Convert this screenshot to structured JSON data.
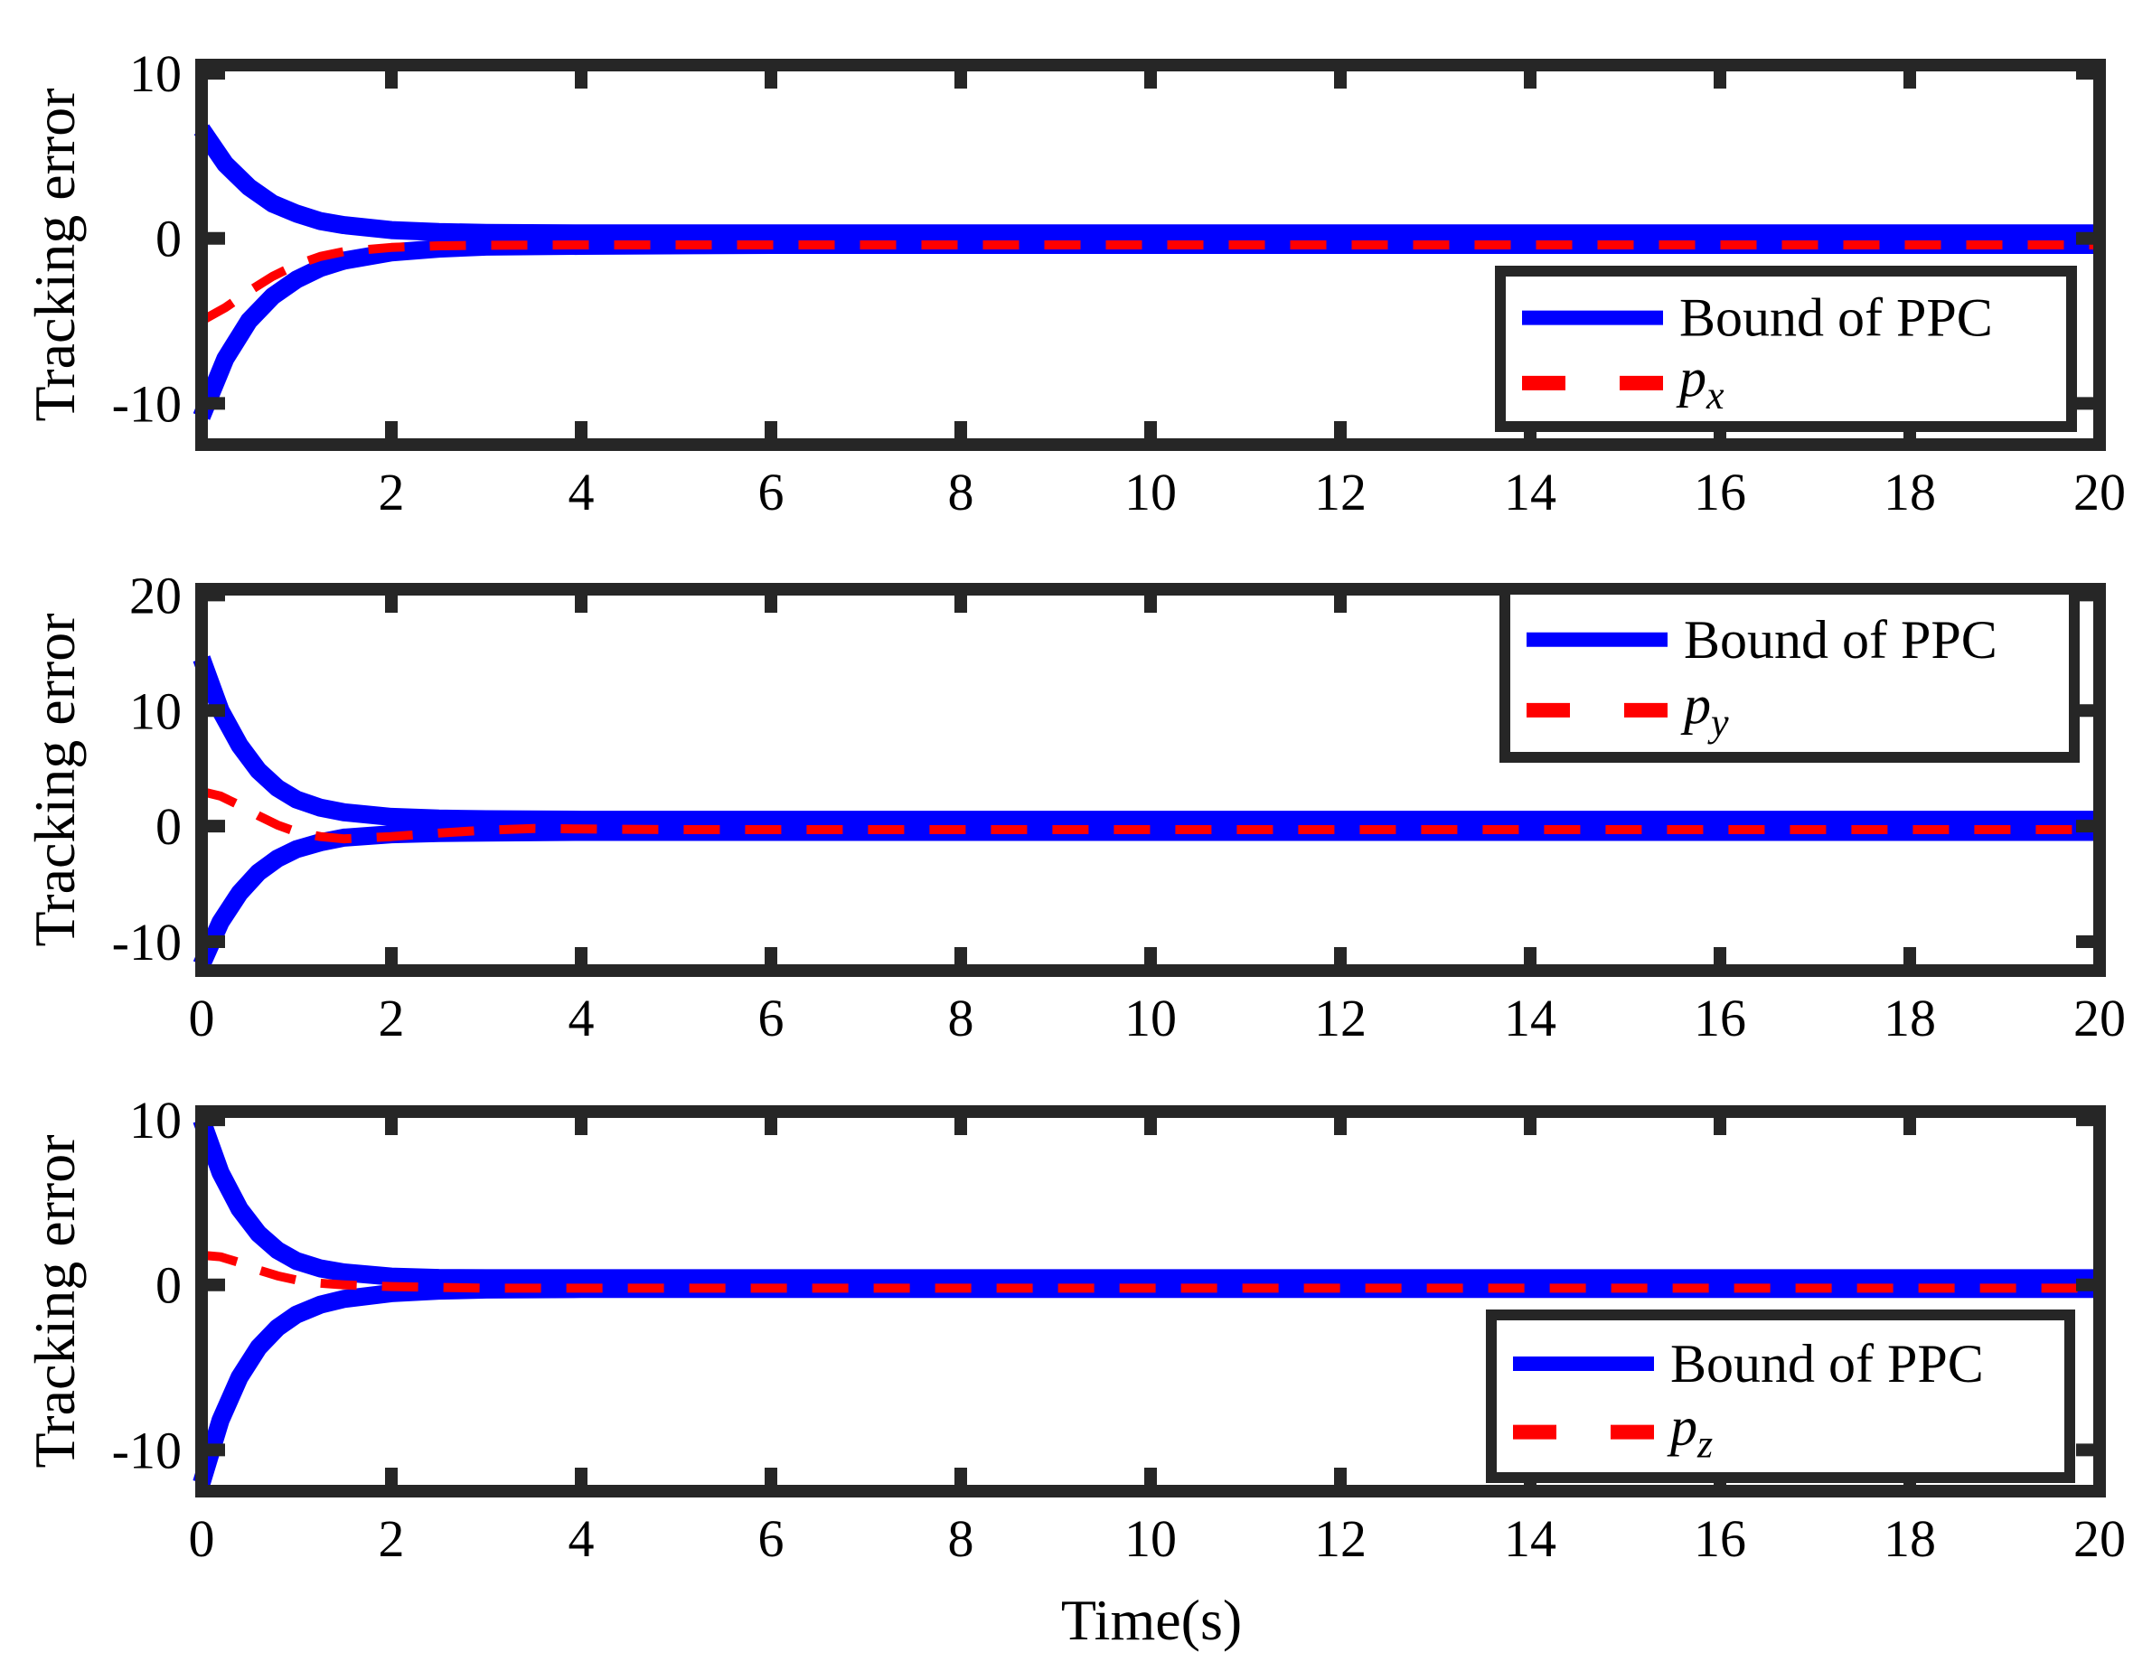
{
  "figure": {
    "xlabel": "Time(s)"
  },
  "colors": {
    "bound": "#0000ff",
    "signal": "#ff0000",
    "frame": "#262626",
    "text": "#000000"
  },
  "chart_data": [
    {
      "type": "line",
      "ylabel": "Tracking error",
      "xlim": [
        0,
        20
      ],
      "ylim": [
        -12.5,
        10.5
      ],
      "x_ticks": [
        2,
        4,
        6,
        8,
        10,
        12,
        14,
        16,
        18,
        20
      ],
      "x_tick_labels": [
        "2",
        "4",
        "6",
        "8",
        "10",
        "12",
        "14",
        "16",
        "18",
        "20"
      ],
      "y_ticks": [
        -10,
        0,
        10
      ],
      "y_tick_labels": [
        "-10",
        "0",
        "10"
      ],
      "legend": {
        "position": "bottom-right",
        "entries": [
          "Bound of PPC",
          "p",
          "x"
        ]
      },
      "legend_bound_label": "Bound of PPC",
      "legend_signal_label": "p",
      "legend_signal_sub": "x",
      "series": [
        {
          "role": "bound-upper",
          "x": [
            0,
            0.25,
            0.5,
            0.75,
            1,
            1.25,
            1.5,
            2,
            2.5,
            3,
            4,
            6,
            10,
            20
          ],
          "y": [
            6.6,
            4.5,
            3.1,
            2.1,
            1.5,
            1.05,
            0.8,
            0.5,
            0.38,
            0.33,
            0.3,
            0.3,
            0.3,
            0.3
          ]
        },
        {
          "role": "bound-lower",
          "x": [
            0,
            0.25,
            0.5,
            0.75,
            1,
            1.25,
            1.5,
            2,
            2.5,
            3,
            4,
            6,
            10,
            20
          ],
          "y": [
            -10.8,
            -7.3,
            -5.0,
            -3.5,
            -2.5,
            -1.8,
            -1.35,
            -0.85,
            -0.62,
            -0.5,
            -0.45,
            -0.4,
            -0.4,
            -0.4
          ]
        },
        {
          "role": "signal",
          "name": "p_x",
          "x": [
            0,
            0.25,
            0.5,
            0.75,
            1,
            1.25,
            1.5,
            2,
            2.5,
            3,
            4,
            6,
            10,
            20
          ],
          "y": [
            -5.0,
            -4.2,
            -3.2,
            -2.3,
            -1.6,
            -1.1,
            -0.8,
            -0.55,
            -0.45,
            -0.42,
            -0.4,
            -0.4,
            -0.4,
            -0.4
          ]
        }
      ]
    },
    {
      "type": "line",
      "ylabel": "Tracking error",
      "xlim": [
        0,
        20
      ],
      "ylim": [
        -12.5,
        20.5
      ],
      "x_ticks": [
        0,
        2,
        4,
        6,
        8,
        10,
        12,
        14,
        16,
        18,
        20
      ],
      "x_tick_labels": [
        "0",
        "2",
        "4",
        "6",
        "8",
        "10",
        "12",
        "14",
        "16",
        "18",
        "20"
      ],
      "y_ticks": [
        -10,
        0,
        10,
        20
      ],
      "y_tick_labels": [
        "-10",
        "0",
        "10",
        "20"
      ],
      "legend": {
        "position": "top-right",
        "entries": [
          "Bound of PPC",
          "p",
          "y"
        ]
      },
      "legend_bound_label": "Bound of PPC",
      "legend_signal_label": "p",
      "legend_signal_sub": "y",
      "series": [
        {
          "role": "bound-upper",
          "x": [
            0,
            0.2,
            0.4,
            0.6,
            0.8,
            1,
            1.25,
            1.5,
            2,
            2.5,
            3,
            4,
            10,
            20
          ],
          "y": [
            14.5,
            10.0,
            7.0,
            4.8,
            3.3,
            2.3,
            1.6,
            1.2,
            0.8,
            0.65,
            0.6,
            0.55,
            0.55,
            0.55
          ]
        },
        {
          "role": "bound-lower",
          "x": [
            0,
            0.2,
            0.4,
            0.6,
            0.8,
            1,
            1.25,
            1.5,
            2,
            2.5,
            3,
            4,
            10,
            20
          ],
          "y": [
            -12.0,
            -8.3,
            -5.8,
            -4.0,
            -2.8,
            -2.0,
            -1.4,
            -1.0,
            -0.7,
            -0.6,
            -0.55,
            -0.5,
            -0.5,
            -0.5
          ]
        },
        {
          "role": "signal",
          "name": "p_y",
          "x": [
            0,
            0.2,
            0.4,
            0.6,
            0.8,
            1,
            1.25,
            1.5,
            2,
            2.5,
            3,
            3.5,
            4,
            5,
            10,
            20
          ],
          "y": [
            3.0,
            2.6,
            1.8,
            0.9,
            0.1,
            -0.5,
            -0.9,
            -1.1,
            -0.9,
            -0.6,
            -0.35,
            -0.2,
            -0.25,
            -0.3,
            -0.3,
            -0.3
          ]
        }
      ]
    },
    {
      "type": "line",
      "ylabel": "Tracking error",
      "xlim": [
        0,
        20
      ],
      "ylim": [
        -12.5,
        10.5
      ],
      "x_ticks": [
        0,
        2,
        4,
        6,
        8,
        10,
        12,
        14,
        16,
        18,
        20
      ],
      "x_tick_labels": [
        "0",
        "2",
        "4",
        "6",
        "8",
        "10",
        "12",
        "14",
        "16",
        "18",
        "20"
      ],
      "y_ticks": [
        -10,
        0,
        10
      ],
      "y_tick_labels": [
        "-10",
        "0",
        "10"
      ],
      "legend": {
        "position": "bottom-right",
        "entries": [
          "Bound of PPC",
          "p",
          "z"
        ]
      },
      "legend_bound_label": "Bound of PPC",
      "legend_signal_label": "p",
      "legend_signal_sub": "z",
      "series": [
        {
          "role": "bound-upper",
          "x": [
            0,
            0.2,
            0.4,
            0.6,
            0.8,
            1,
            1.25,
            1.5,
            2,
            2.5,
            3,
            4,
            10,
            20
          ],
          "y": [
            10.0,
            6.8,
            4.6,
            3.1,
            2.1,
            1.45,
            1.0,
            0.75,
            0.5,
            0.42,
            0.4,
            0.4,
            0.4,
            0.4
          ]
        },
        {
          "role": "bound-lower",
          "x": [
            0,
            0.2,
            0.4,
            0.6,
            0.8,
            1,
            1.25,
            1.5,
            2,
            2.5,
            3,
            4,
            10,
            20
          ],
          "y": [
            -12.0,
            -8.2,
            -5.6,
            -3.8,
            -2.6,
            -1.8,
            -1.2,
            -0.85,
            -0.5,
            -0.35,
            -0.28,
            -0.25,
            -0.25,
            -0.25
          ]
        },
        {
          "role": "signal",
          "name": "p_z",
          "x": [
            0,
            0.2,
            0.4,
            0.6,
            0.8,
            1,
            1.25,
            1.5,
            2,
            2.5,
            3,
            4,
            10,
            20
          ],
          "y": [
            1.8,
            1.7,
            1.35,
            0.9,
            0.55,
            0.3,
            0.1,
            0.0,
            -0.1,
            -0.15,
            -0.2,
            -0.2,
            -0.2,
            -0.2
          ]
        }
      ]
    }
  ]
}
